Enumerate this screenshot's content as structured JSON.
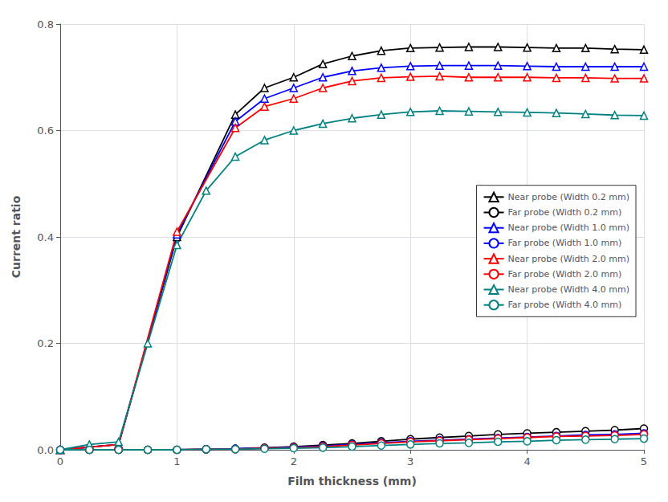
{
  "chart_data": {
    "type": "line",
    "xlabel": "Film thickness (mm)",
    "ylabel": "Current ratio",
    "xlim": [
      0,
      5
    ],
    "ylim": [
      0,
      0.8
    ],
    "xticks": [
      0,
      1,
      2,
      3,
      4,
      5
    ],
    "yticks": [
      {
        "value": 0.0,
        "label": "0.0"
      },
      0.2,
      0.4,
      0.6,
      0.8
    ],
    "grid": true,
    "legend": "center right",
    "series": [
      {
        "name": "Near probe (Width 0.2 mm)",
        "color": "#000000",
        "marker": "triangle",
        "x": [
          0,
          0.5,
          1.0,
          1.5,
          1.75,
          2.0,
          2.25,
          2.5,
          2.75,
          3.0,
          3.25,
          3.5,
          3.75,
          4.0,
          4.25,
          4.5,
          4.75,
          5.0
        ],
        "values": [
          0.0,
          0.01,
          0.4,
          0.63,
          0.68,
          0.7,
          0.725,
          0.74,
          0.75,
          0.755,
          0.756,
          0.757,
          0.757,
          0.756,
          0.755,
          0.755,
          0.753,
          0.752
        ]
      },
      {
        "name": "Far probe (Width 0.2 mm)",
        "color": "#000000",
        "marker": "circle",
        "x": [
          0,
          0.25,
          0.5,
          0.75,
          1.0,
          1.25,
          1.5,
          1.75,
          2.0,
          2.25,
          2.5,
          2.75,
          3.0,
          3.25,
          3.5,
          3.75,
          4.0,
          4.25,
          4.5,
          4.75,
          5.0
        ],
        "values": [
          0.0,
          0.0,
          0.0,
          0.0,
          0.0,
          0.001,
          0.002,
          0.004,
          0.006,
          0.009,
          0.012,
          0.016,
          0.02,
          0.023,
          0.026,
          0.029,
          0.031,
          0.033,
          0.035,
          0.037,
          0.04
        ]
      },
      {
        "name": "Near probe (Width 1.0 mm)",
        "color": "#0000FF",
        "marker": "triangle",
        "x": [
          0,
          0.5,
          1.0,
          1.5,
          1.75,
          2.0,
          2.25,
          2.5,
          2.75,
          3.0,
          3.25,
          3.5,
          3.75,
          4.0,
          4.25,
          4.5,
          4.75,
          5.0
        ],
        "values": [
          0.0,
          0.01,
          0.405,
          0.617,
          0.66,
          0.68,
          0.7,
          0.712,
          0.718,
          0.721,
          0.722,
          0.722,
          0.722,
          0.721,
          0.72,
          0.72,
          0.72,
          0.72
        ]
      },
      {
        "name": "Far probe (Width 1.0 mm)",
        "color": "#0000FF",
        "marker": "circle",
        "x": [
          0,
          0.25,
          0.5,
          0.75,
          1.0,
          1.25,
          1.5,
          1.75,
          2.0,
          2.25,
          2.5,
          2.75,
          3.0,
          3.25,
          3.5,
          3.75,
          4.0,
          4.25,
          4.5,
          4.75,
          5.0
        ],
        "values": [
          0.0,
          0.0,
          0.0,
          0.0,
          0.0,
          0.001,
          0.002,
          0.003,
          0.005,
          0.007,
          0.01,
          0.013,
          0.016,
          0.018,
          0.02,
          0.022,
          0.024,
          0.026,
          0.028,
          0.029,
          0.031
        ]
      },
      {
        "name": "Near probe (Width 2.0 mm)",
        "color": "#FF0000",
        "marker": "triangle",
        "x": [
          0,
          0.5,
          1.0,
          1.5,
          1.75,
          2.0,
          2.25,
          2.5,
          2.75,
          3.0,
          3.25,
          3.5,
          3.75,
          4.0,
          4.25,
          4.5,
          4.75,
          5.0
        ],
        "values": [
          0.0,
          0.01,
          0.41,
          0.605,
          0.645,
          0.66,
          0.68,
          0.693,
          0.699,
          0.701,
          0.702,
          0.7,
          0.7,
          0.7,
          0.699,
          0.699,
          0.698,
          0.698
        ]
      },
      {
        "name": "Far probe (Width 2.0 mm)",
        "color": "#FF0000",
        "marker": "circle",
        "x": [
          0,
          0.25,
          0.5,
          0.75,
          1.0,
          1.25,
          1.5,
          1.75,
          2.0,
          2.25,
          2.5,
          2.75,
          3.0,
          3.25,
          3.5,
          3.75,
          4.0,
          4.25,
          4.5,
          4.75,
          5.0
        ],
        "values": [
          0.0,
          0.0,
          0.0,
          0.0,
          0.0,
          0.001,
          0.001,
          0.003,
          0.004,
          0.006,
          0.009,
          0.012,
          0.015,
          0.017,
          0.019,
          0.021,
          0.023,
          0.025,
          0.026,
          0.027,
          0.029
        ]
      },
      {
        "name": "Near probe (Width 4.0 mm)",
        "color": "#008080",
        "marker": "triangle",
        "x": [
          0,
          0.25,
          0.5,
          0.75,
          1.0,
          1.25,
          1.5,
          1.75,
          2.0,
          2.25,
          2.5,
          2.75,
          3.0,
          3.25,
          3.5,
          3.75,
          4.0,
          4.25,
          4.5,
          4.75,
          5.0
        ],
        "values": [
          0.0,
          0.01,
          0.015,
          0.2,
          0.385,
          0.487,
          0.551,
          0.582,
          0.6,
          0.613,
          0.623,
          0.63,
          0.635,
          0.637,
          0.636,
          0.635,
          0.634,
          0.633,
          0.631,
          0.629,
          0.628
        ]
      },
      {
        "name": "Far probe (Width 4.0 mm)",
        "color": "#008080",
        "marker": "circle",
        "x": [
          0,
          0.25,
          0.5,
          0.75,
          1.0,
          1.25,
          1.5,
          1.75,
          2.0,
          2.25,
          2.5,
          2.75,
          3.0,
          3.25,
          3.5,
          3.75,
          4.0,
          4.25,
          4.5,
          4.75,
          5.0
        ],
        "values": [
          0.0,
          0.0,
          0.0,
          0.0,
          0.0,
          0.001,
          0.001,
          0.002,
          0.003,
          0.004,
          0.006,
          0.008,
          0.01,
          0.012,
          0.013,
          0.015,
          0.016,
          0.018,
          0.019,
          0.02,
          0.021
        ]
      }
    ]
  }
}
